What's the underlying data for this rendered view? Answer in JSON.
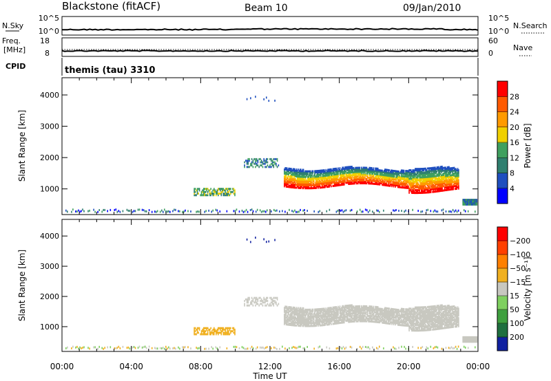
{
  "header": {
    "station": "Blackstone (fitACF)",
    "beam": "Beam 10",
    "date": "09/Jan/2010"
  },
  "top_panel": {
    "left_label": "N.Sky",
    "right_label": "N.Search",
    "left_ticks": [
      "10^5",
      "10^0"
    ],
    "right_ticks": [
      "10^5",
      "10^0"
    ]
  },
  "freq_panel": {
    "left_label_1": "Freq.",
    "left_label_2": "[MHz]",
    "right_label": "Nave",
    "left_ticks": [
      "18",
      "8"
    ],
    "right_ticks": [
      "60",
      "0"
    ]
  },
  "cpid_panel": {
    "label": "CPID",
    "program": "themis (tau) 3310"
  },
  "chart_data": [
    {
      "type": "heatmap",
      "name": "power",
      "ylabel": "Slant Range [km]",
      "ylim": [
        180,
        4550
      ],
      "yticks": [
        1000,
        2000,
        3000,
        4000
      ],
      "xlim": [
        0,
        24
      ],
      "xticks": [
        "00:00",
        "04:00",
        "08:00",
        "12:00",
        "16:00",
        "20:00",
        "00:00"
      ],
      "colorbar": {
        "label": "Power [dB]",
        "ticks": [
          "4",
          "8",
          "12",
          "16",
          "20",
          "24",
          "28"
        ],
        "colors": [
          "#0000ff",
          "#1f4fbf",
          "#2f7f6f",
          "#3fa05f",
          "#f0d000",
          "#ff9a00",
          "#ff5a00",
          "#ff0000"
        ]
      }
    },
    {
      "type": "heatmap",
      "name": "velocity",
      "ylabel": "Slant Range [km]",
      "ylim": [
        180,
        4550
      ],
      "yticks": [
        1000,
        2000,
        3000,
        4000
      ],
      "xlim": [
        0,
        24
      ],
      "xticks": [
        "00:00",
        "04:00",
        "08:00",
        "12:00",
        "16:00",
        "20:00",
        "00:00"
      ],
      "xlabel": "Time UT",
      "colorbar": {
        "label": "Velocity [m s⁻¹]",
        "ticks": [
          "200",
          "100",
          "50",
          "15",
          "−15",
          "−50",
          "−100",
          "−200"
        ],
        "colors": [
          "#1020a0",
          "#1f6f3f",
          "#3fa03f",
          "#7fd05f",
          "#c8c8c0",
          "#f0b020",
          "#ff8000",
          "#ff4000",
          "#ff0000"
        ]
      }
    }
  ]
}
